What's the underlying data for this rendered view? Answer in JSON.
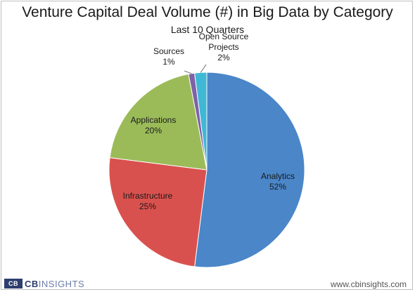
{
  "chart_data": {
    "type": "pie",
    "title": "Venture Capital Deal Volume (#) in Big Data by Category",
    "subtitle": "Last 10 Quarters",
    "slices": [
      {
        "label": "Analytics",
        "value": 52,
        "value_label": "52%",
        "color": "#4a86c8"
      },
      {
        "label": "Infrastructure",
        "value": 25,
        "value_label": "25%",
        "color": "#d9514e"
      },
      {
        "label": "Applications",
        "value": 20,
        "value_label": "20%",
        "color": "#9bbb59"
      },
      {
        "label": "Sources",
        "value": 1,
        "value_label": "1%",
        "color": "#7f61a7"
      },
      {
        "label": "Open Source Projects",
        "value": 2,
        "value_label": "2%",
        "color": "#3fb8d6"
      }
    ]
  },
  "footer": {
    "logo_mark": "CB",
    "logo_word_a": "CB",
    "logo_word_b": "INSIGHTS",
    "site": "www.cbinsights.com"
  }
}
